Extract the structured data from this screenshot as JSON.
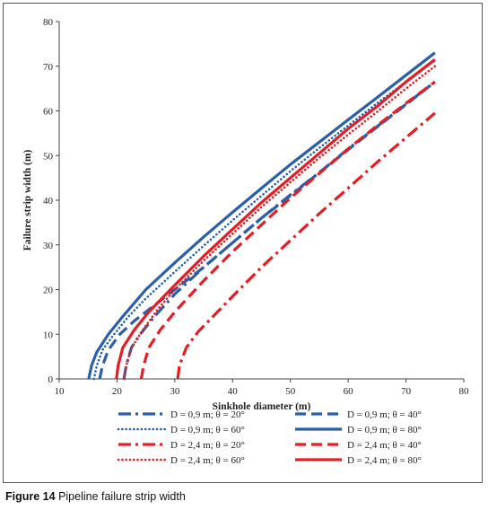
{
  "caption": {
    "figure_label": "Figure 14",
    "text": "Pipeline failure strip width"
  },
  "chart_data": {
    "type": "line",
    "title": "",
    "xlabel": "Sinkhole diameter (m)",
    "ylabel": "Failure strip width (m)",
    "xlim": [
      10,
      80
    ],
    "ylim": [
      0,
      80
    ],
    "xticks": [
      10,
      20,
      30,
      40,
      50,
      60,
      70,
      80
    ],
    "yticks": [
      0,
      10,
      20,
      30,
      40,
      50,
      60,
      70,
      80
    ],
    "grid": false,
    "legend_position": "bottom",
    "series": [
      {
        "name": "D = 0,9 m; θ = 20°",
        "color": "#2b5faa",
        "style": "dash-dot",
        "x": [
          21.2,
          21.6,
          22.5,
          24.0,
          26.5,
          30.0,
          35.0,
          40.0,
          45.0,
          50.0,
          55.0,
          60.0,
          65.0,
          70.0,
          75.0
        ],
        "y": [
          0,
          3,
          7,
          10,
          14,
          19,
          25,
          30.5,
          36,
          41.2,
          46.2,
          51.5,
          56.5,
          61.5,
          66.5
        ]
      },
      {
        "name": "D = 0,9 m; θ = 40°",
        "color": "#2b5faa",
        "style": "dash",
        "x": [
          17.0,
          17.5,
          18.5,
          20.5,
          23.0,
          27.0,
          31.0,
          35.0,
          40.0,
          45.0,
          50.0,
          55.0,
          60.0,
          65.0,
          70.0,
          75.0
        ],
        "y": [
          0,
          3,
          6.5,
          10,
          13,
          17,
          21,
          25,
          30.5,
          36,
          41,
          46.2,
          51.3,
          56.4,
          61.4,
          66.5
        ]
      },
      {
        "name": "D = 0,9 m; θ = 60°",
        "color": "#2b5faa",
        "style": "dot",
        "x": [
          16.0,
          16.5,
          17.5,
          19.5,
          22.0,
          25.0,
          30.0,
          35.0,
          40.0,
          45.0,
          50.0,
          55.0,
          60.0,
          65.0,
          70.0,
          75.0
        ],
        "y": [
          0,
          3,
          6.5,
          10,
          14,
          18,
          24,
          29.8,
          35.5,
          41,
          46.5,
          51.7,
          56.7,
          61.7,
          66.5,
          71.3
        ]
      },
      {
        "name": "D = 0,9 m; θ = 80°",
        "color": "#2b5faa",
        "style": "solid",
        "x": [
          15.1,
          15.6,
          16.5,
          18.5,
          21.0,
          25.0,
          30.0,
          35.0,
          40.0,
          45.0,
          50.0,
          55.0,
          60.0,
          65.0,
          70.0,
          75.0
        ],
        "y": [
          0,
          3,
          6,
          10,
          14,
          20,
          26,
          31.8,
          37.3,
          42.7,
          48,
          53,
          58,
          63,
          68,
          73
        ]
      },
      {
        "name": "D = 2,4 m; θ = 20°",
        "color": "#e31e24",
        "style": "dash-dot",
        "x": [
          30.5,
          30.8,
          32.0,
          34.0,
          37.0,
          40.0,
          45.0,
          50.0,
          55.0,
          60.0,
          65.0,
          70.0,
          75.0
        ],
        "y": [
          0,
          3,
          7,
          10.5,
          14.5,
          18.5,
          25,
          31,
          37,
          42.7,
          48.5,
          54,
          59.5
        ]
      },
      {
        "name": "D = 2,4 m; θ = 40°",
        "color": "#e31e24",
        "style": "dash",
        "x": [
          24.2,
          24.6,
          25.5,
          27.5,
          30.0,
          35.0,
          40.0,
          45.0,
          50.0,
          55.0,
          60.0,
          65.0,
          70.0,
          75.0
        ],
        "y": [
          0,
          3,
          7,
          11,
          15,
          22,
          28.5,
          34.5,
          40.5,
          46,
          51.5,
          56.7,
          61.7,
          66.5
        ]
      },
      {
        "name": "D = 2,4 m; θ = 60°",
        "color": "#e31e24",
        "style": "dot",
        "x": [
          21.2,
          21.6,
          22.5,
          24.5,
          27.0,
          30.0,
          35.0,
          40.0,
          45.0,
          50.0,
          55.0,
          60.0,
          65.0,
          70.0,
          75.0
        ],
        "y": [
          0,
          3,
          7,
          11,
          15.5,
          20,
          26.5,
          32.5,
          38.5,
          44,
          49.5,
          54.7,
          59.8,
          65,
          70
        ]
      },
      {
        "name": "D = 2,4 m; θ = 80°",
        "color": "#e31e24",
        "style": "solid",
        "x": [
          19.9,
          20.2,
          21.0,
          23.0,
          25.5,
          30.0,
          35.0,
          40.0,
          45.0,
          50.0,
          55.0,
          60.0,
          65.0,
          70.0,
          75.0
        ],
        "y": [
          0,
          3,
          7,
          11,
          15,
          21,
          27.5,
          33.5,
          39.5,
          45,
          50.5,
          56,
          61,
          66.5,
          71.5
        ]
      }
    ]
  }
}
